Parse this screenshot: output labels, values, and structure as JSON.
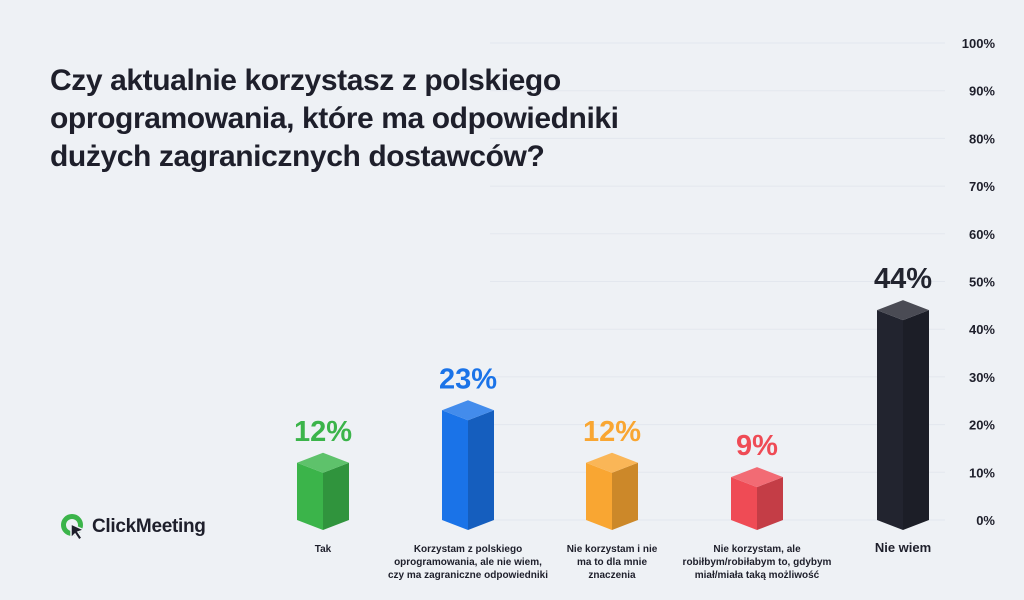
{
  "title_lines": [
    "Czy aktualnie korzystasz z polskiego",
    "oprogramowania, które ma odpowiedniki",
    "dużych zagranicznych dostawców?"
  ],
  "brand": {
    "name": "ClickMeeting",
    "accent": "#3bb44a"
  },
  "chart_data": {
    "type": "bar",
    "title": "Czy aktualnie korzystasz z polskiego oprogramowania, które ma odpowiedniki dużych zagranicznych dostawców?",
    "ylim": [
      0,
      100
    ],
    "y_ticks": [
      "0%",
      "10%",
      "20%",
      "30%",
      "40%",
      "50%",
      "60%",
      "70%",
      "80%",
      "90%",
      "100%"
    ],
    "y_axis_side": "right",
    "grid": true,
    "categories": [
      {
        "label_lines": [
          "Tak"
        ],
        "bold": false
      },
      {
        "label_lines": [
          "Korzystam z polskiego",
          "oprogramowania, ale nie wiem,",
          "czy ma zagraniczne odpowiedniki"
        ],
        "bold": false
      },
      {
        "label_lines": [
          "Nie korzystam i nie",
          "ma to dla mnie",
          "znaczenia"
        ],
        "bold": false
      },
      {
        "label_lines": [
          "Nie korzystam, ale",
          "robiłbym/robiłabym to, gdybym",
          "miał/miała taką możliwość"
        ],
        "bold": false
      },
      {
        "label_lines": [
          "Nie wiem"
        ],
        "bold": true
      }
    ],
    "values": [
      12,
      23,
      12,
      9,
      44
    ],
    "value_labels": [
      "12%",
      "23%",
      "12%",
      "9%",
      "44%"
    ],
    "colors": [
      "#3bb44a",
      "#1a73e8",
      "#f9a632",
      "#ef4b55",
      "#22242f"
    ],
    "label_colors": [
      "#3bb44a",
      "#1a73e8",
      "#f9a632",
      "#ef4b55",
      "#22242f"
    ]
  }
}
